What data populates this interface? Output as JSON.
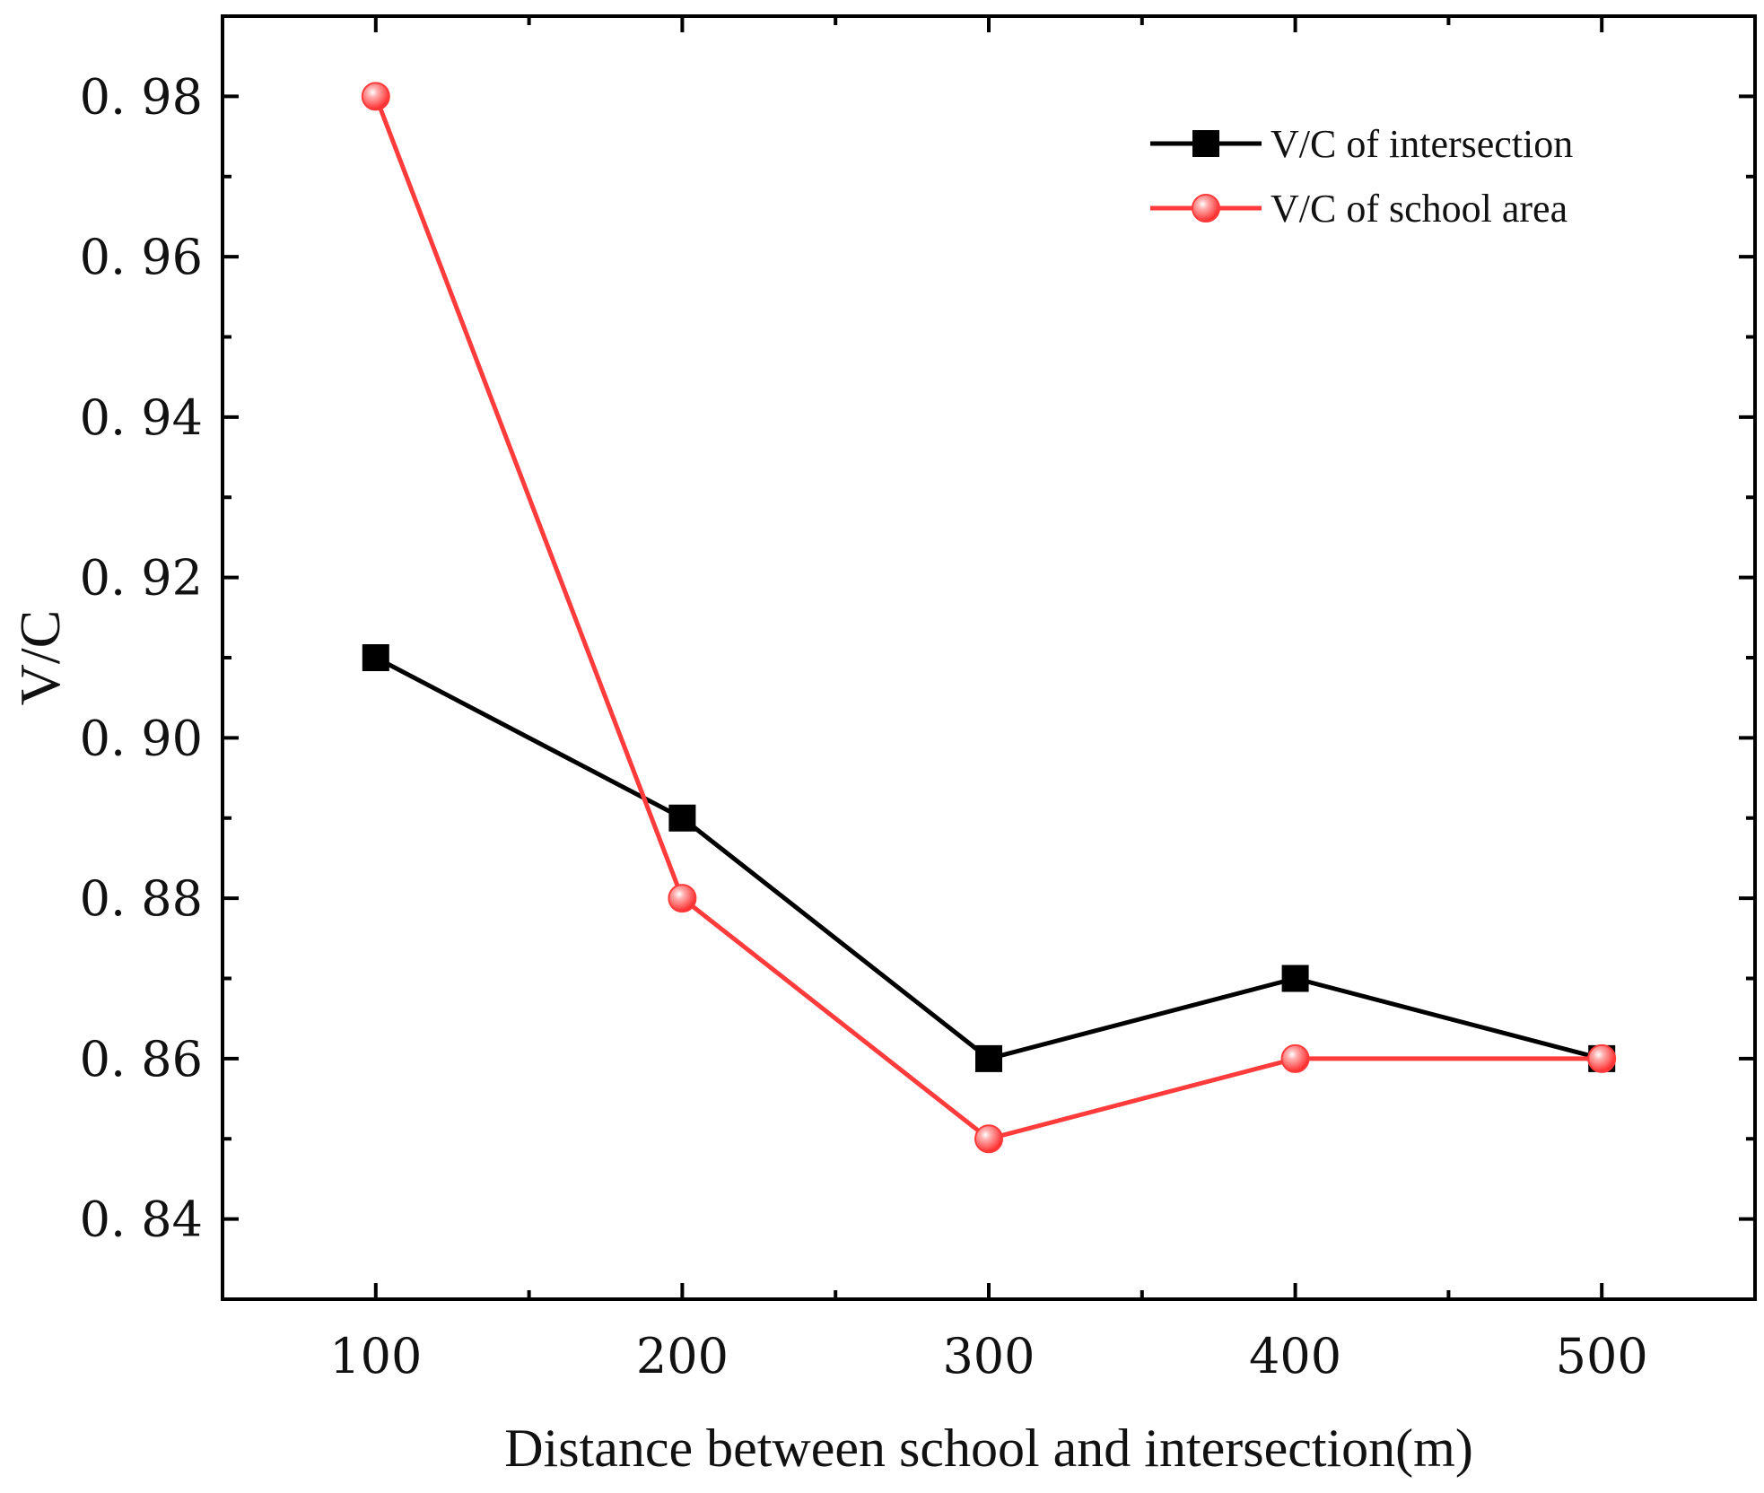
{
  "chart_data": {
    "type": "line",
    "title": "",
    "xlabel": "Distance between school and intersection(m)",
    "ylabel": "V/C",
    "x": [
      100,
      200,
      300,
      400,
      500
    ],
    "x_ticks": [
      100,
      200,
      300,
      400,
      500
    ],
    "x_tick_labels": [
      "100",
      "200",
      "300",
      "400",
      "500"
    ],
    "xlim": [
      50,
      550
    ],
    "y_ticks": [
      0.84,
      0.86,
      0.88,
      0.9,
      0.92,
      0.94,
      0.96,
      0.98
    ],
    "y_tick_labels": [
      "0. 84",
      "0. 86",
      "0. 88",
      "0. 90",
      "0. 92",
      "0. 94",
      "0. 96",
      "0. 98"
    ],
    "ylim": [
      0.83,
      0.99
    ],
    "grid": false,
    "legend_position": "top-right",
    "series": [
      {
        "name": "V/C of intersection",
        "values": [
          0.91,
          0.89,
          0.86,
          0.87,
          0.86
        ],
        "color": "#000000",
        "marker": "square"
      },
      {
        "name": "V/C of school area",
        "values": [
          0.98,
          0.88,
          0.85,
          0.86,
          0.86
        ],
        "color": "#ff3b3b",
        "marker": "circle"
      }
    ]
  }
}
